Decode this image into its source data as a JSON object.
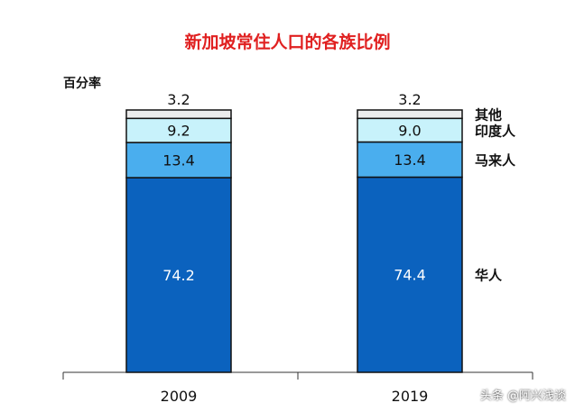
{
  "chart_data": {
    "type": "bar",
    "stacked": true,
    "title": "新加坡常住人口的各族比例",
    "ylabel": "百分率",
    "categories": [
      "2009",
      "2019"
    ],
    "series": [
      {
        "name": "华人",
        "values": [
          74.2,
          74.4
        ],
        "color": "#0b62be",
        "label_color": "#ffffff"
      },
      {
        "name": "马来人",
        "values": [
          13.4,
          13.4
        ],
        "color": "#4aaeee",
        "label_color": "#111111"
      },
      {
        "name": "印度人",
        "values": [
          9.2,
          9.0
        ],
        "color": "#c8f2fb",
        "label_color": "#111111"
      },
      {
        "name": "其他",
        "values": [
          3.2,
          3.2
        ],
        "color": "#ececec",
        "label_color": "#111111"
      }
    ],
    "ylim": [
      0,
      100
    ],
    "legend": "right"
  },
  "watermark": "头条 @阿兴浅谈"
}
